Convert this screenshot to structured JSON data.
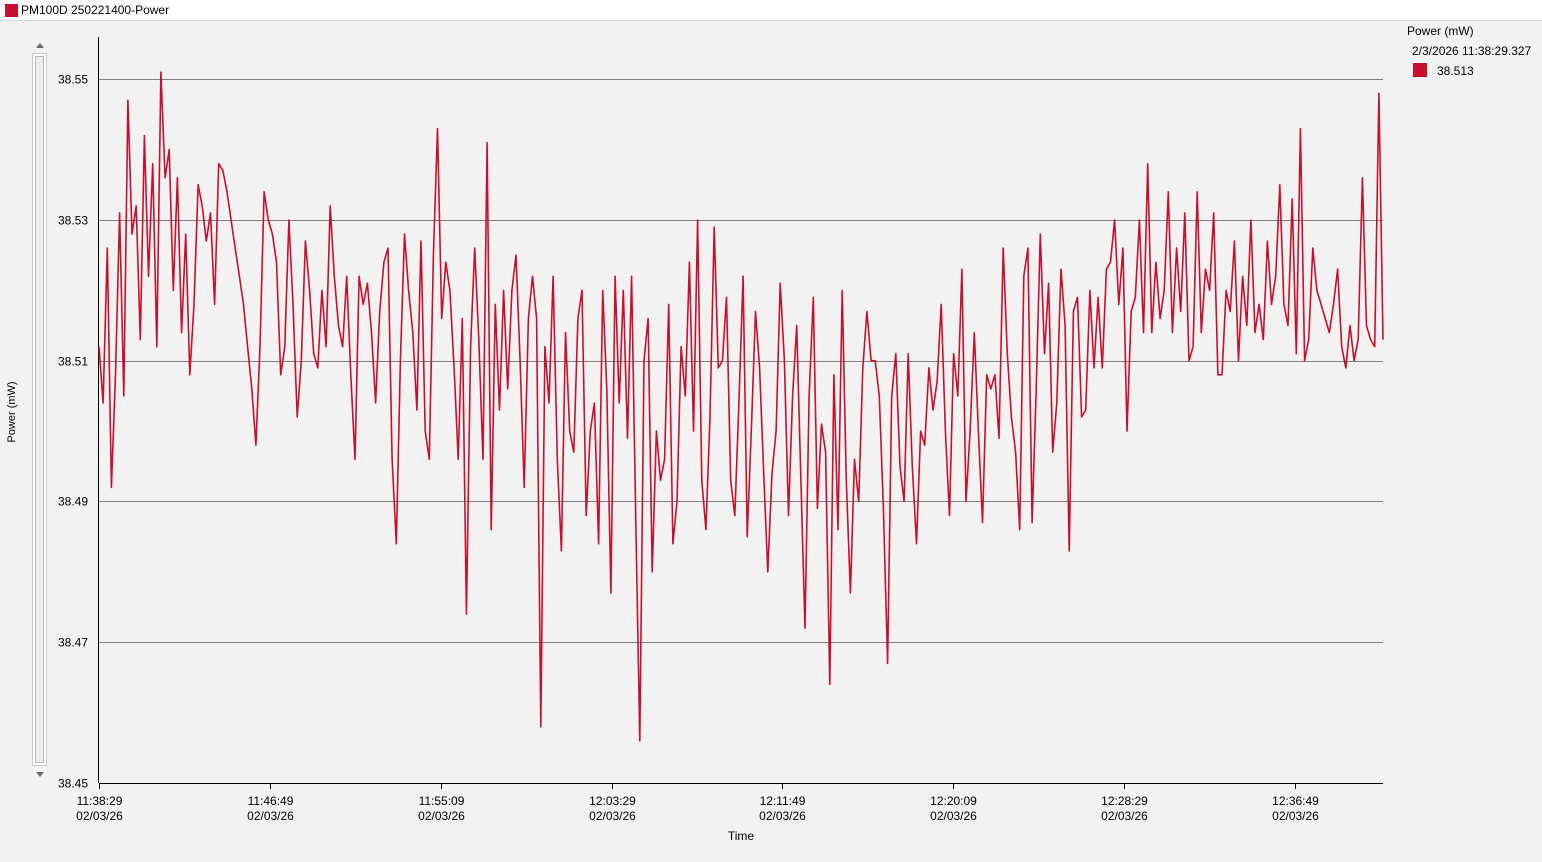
{
  "window": {
    "title": "PM100D 250221400-Power"
  },
  "colors": {
    "series": "#c8102e",
    "gridline": "#7f7f7f",
    "axis": "#000000",
    "background": "#f2f2f2"
  },
  "scrollbar": {
    "up_icon": "triangle-up",
    "down_icon": "triangle-down"
  },
  "legend": {
    "title": "Power (mW)",
    "timestamp": "2/3/2026 11:38:29.327",
    "value": "38.513"
  },
  "chart_data": {
    "type": "line",
    "title": "",
    "xlabel": "Time",
    "ylabel": "Power (mW)",
    "ylim": [
      38.45,
      38.556
    ],
    "yticks": [
      38.45,
      38.47,
      38.49,
      38.51,
      38.53,
      38.55
    ],
    "ytick_labels": [
      "38.45",
      "38.47",
      "38.49",
      "38.51",
      "38.53",
      "38.55"
    ],
    "xlim": [
      "11:38:29",
      "12:41:07"
    ],
    "xticks": [
      {
        "time": "11:38:29",
        "date": "02/03/26"
      },
      {
        "time": "11:46:49",
        "date": "02/03/26"
      },
      {
        "time": "11:55:09",
        "date": "02/03/26"
      },
      {
        "time": "12:03:29",
        "date": "02/03/26"
      },
      {
        "time": "12:11:49",
        "date": "02/03/26"
      },
      {
        "time": "12:20:09",
        "date": "02/03/26"
      },
      {
        "time": "12:28:29",
        "date": "02/03/26"
      },
      {
        "time": "12:36:49",
        "date": "02/03/26"
      }
    ],
    "grid": {
      "horizontal": true,
      "vertical": false
    },
    "legend_position": "top-right",
    "series": [
      {
        "name": "Power (mW)",
        "x_start": "11:38:29",
        "x_end": "12:41:07",
        "values": [
          38.512,
          38.504,
          38.526,
          38.492,
          38.508,
          38.531,
          38.505,
          38.547,
          38.528,
          38.532,
          38.513,
          38.542,
          38.522,
          38.538,
          38.512,
          38.551,
          38.536,
          38.54,
          38.52,
          38.536,
          38.514,
          38.528,
          38.508,
          38.518,
          38.535,
          38.532,
          38.527,
          38.531,
          38.518,
          38.538,
          38.537,
          38.534,
          38.53,
          38.526,
          38.522,
          38.518,
          38.512,
          38.506,
          38.498,
          38.512,
          38.534,
          38.53,
          38.528,
          38.524,
          38.508,
          38.512,
          38.53,
          38.518,
          38.502,
          38.51,
          38.527,
          38.52,
          38.511,
          38.509,
          38.52,
          38.512,
          38.532,
          38.522,
          38.515,
          38.512,
          38.522,
          38.508,
          38.496,
          38.522,
          38.518,
          38.521,
          38.514,
          38.504,
          38.517,
          38.524,
          38.526,
          38.496,
          38.484,
          38.51,
          38.528,
          38.52,
          38.514,
          38.503,
          38.527,
          38.5,
          38.496,
          38.525,
          38.543,
          38.516,
          38.524,
          38.52,
          38.509,
          38.496,
          38.516,
          38.474,
          38.512,
          38.526,
          38.513,
          38.496,
          38.541,
          38.486,
          38.518,
          38.503,
          38.52,
          38.506,
          38.52,
          38.525,
          38.51,
          38.492,
          38.516,
          38.522,
          38.516,
          38.458,
          38.512,
          38.504,
          38.522,
          38.496,
          38.483,
          38.514,
          38.5,
          38.497,
          38.516,
          38.52,
          38.488,
          38.5,
          38.504,
          38.484,
          38.52,
          38.506,
          38.477,
          38.522,
          38.504,
          38.52,
          38.499,
          38.522,
          38.488,
          38.456,
          38.51,
          38.516,
          38.48,
          38.5,
          38.493,
          38.496,
          38.518,
          38.484,
          38.49,
          38.512,
          38.505,
          38.524,
          38.5,
          38.53,
          38.493,
          38.486,
          38.502,
          38.529,
          38.509,
          38.51,
          38.519,
          38.493,
          38.488,
          38.504,
          38.522,
          38.485,
          38.5,
          38.517,
          38.509,
          38.494,
          38.48,
          38.494,
          38.5,
          38.521,
          38.51,
          38.488,
          38.505,
          38.515,
          38.493,
          38.472,
          38.505,
          38.519,
          38.489,
          38.501,
          38.497,
          38.464,
          38.508,
          38.486,
          38.52,
          38.493,
          38.477,
          38.496,
          38.49,
          38.509,
          38.517,
          38.51,
          38.51,
          38.505,
          38.489,
          38.467,
          38.505,
          38.511,
          38.495,
          38.49,
          38.511,
          38.495,
          38.484,
          38.5,
          38.498,
          38.509,
          38.503,
          38.507,
          38.518,
          38.5,
          38.488,
          38.511,
          38.505,
          38.523,
          38.49,
          38.5,
          38.514,
          38.5,
          38.487,
          38.508,
          38.506,
          38.508,
          38.499,
          38.526,
          38.511,
          38.502,
          38.497,
          38.486,
          38.522,
          38.526,
          38.487,
          38.506,
          38.528,
          38.511,
          38.521,
          38.497,
          38.504,
          38.523,
          38.515,
          38.483,
          38.517,
          38.519,
          38.502,
          38.503,
          38.52,
          38.509,
          38.519,
          38.509,
          38.523,
          38.524,
          38.53,
          38.518,
          38.526,
          38.5,
          38.517,
          38.519,
          38.53,
          38.514,
          38.538,
          38.514,
          38.524,
          38.516,
          38.52,
          38.534,
          38.514,
          38.526,
          38.517,
          38.531,
          38.51,
          38.512,
          38.534,
          38.514,
          38.523,
          38.52,
          38.531,
          38.508,
          38.508,
          38.52,
          38.517,
          38.527,
          38.51,
          38.522,
          38.515,
          38.53,
          38.514,
          38.518,
          38.513,
          38.527,
          38.518,
          38.522,
          38.535,
          38.518,
          38.515,
          38.533,
          38.511,
          38.543,
          38.51,
          38.513,
          38.526,
          38.52,
          38.518,
          38.516,
          38.514,
          38.518,
          38.523,
          38.512,
          38.509,
          38.515,
          38.51,
          38.513,
          38.536,
          38.515,
          38.513,
          38.512,
          38.548,
          38.513
        ]
      }
    ]
  }
}
